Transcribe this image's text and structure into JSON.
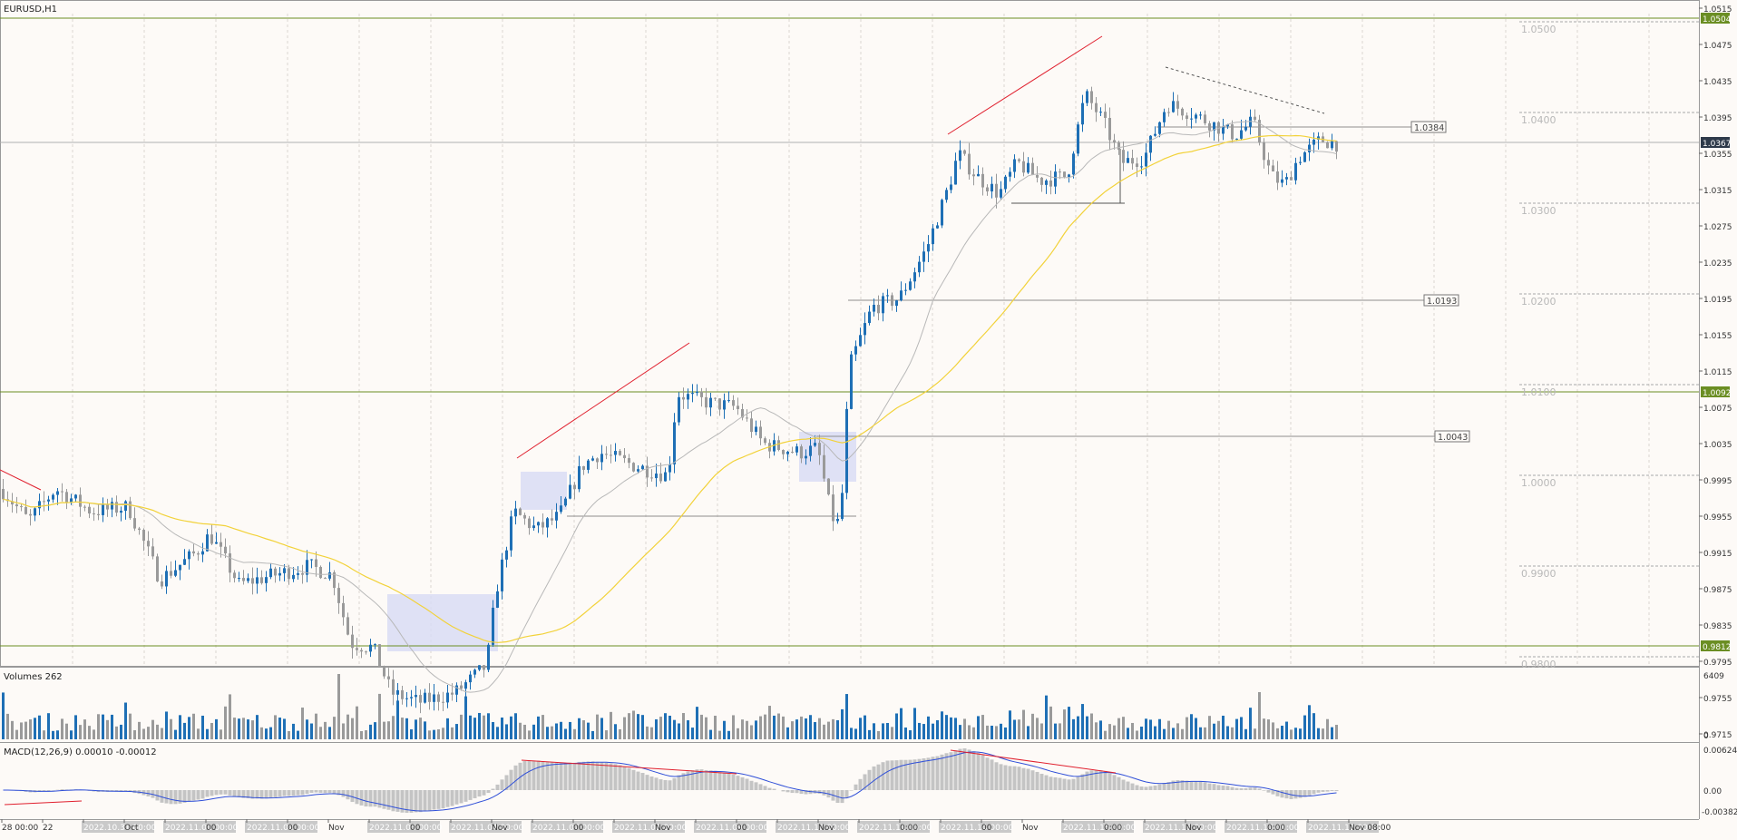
{
  "window": {
    "symbol_title": "EURUSD,H1"
  },
  "volume_panel": {
    "title": "Volumes 262",
    "max_label": "6409",
    "zero_label": "0"
  },
  "macd_panel": {
    "title": "MACD(12,26,9) 0.00010 -0.00012",
    "top_label": "0.00624",
    "zero_label": "0.00",
    "bottom_label": "-0.00382"
  },
  "price_axis": {
    "ticks": [
      "1.0515",
      "1.0475",
      "1.0435",
      "1.0395",
      "1.0355",
      "1.0315",
      "1.0275",
      "1.0235",
      "1.0195",
      "1.0155",
      "1.0115",
      "1.0075",
      "1.0035",
      "0.9995",
      "0.9955",
      "0.9915",
      "0.9875",
      "0.9835",
      "0.9795",
      "0.9755",
      "0.9715"
    ],
    "current_price": "1.0367"
  },
  "round_levels": [
    "1.0500",
    "1.0400",
    "1.0300",
    "1.0200",
    "1.0100",
    "1.0000",
    "0.9900",
    "0.9800"
  ],
  "horizontal_levels": [
    {
      "label": "1.0504",
      "color": "#6b8e23"
    },
    {
      "label": "1.0092",
      "color": "#6b8e23"
    },
    {
      "label": "0.9812",
      "color": "#6b8e23"
    }
  ],
  "line_labels": [
    "1.0384",
    "1.0193",
    "1.0043"
  ],
  "time_axis": {
    "labels": [
      "28 00:00",
      "22",
      "2022.10.31 00:00",
      "Oct",
      "2022.11.01 00:00",
      "00",
      "2022.11.02 00:00",
      "00",
      "Nov",
      "2022.11.03 00:00",
      "00",
      "2022.11.04 00:00",
      "Nov",
      "2022.11.07 00:00",
      "00",
      "2022.11.08 00:00",
      "Nov",
      "2022.11.09 00:00",
      "00",
      "2022.11.10 00:00",
      "Nov",
      "2022.11.11 00:00",
      "0:00",
      "2022.11.14 00:00",
      "00",
      "Nov",
      "2022.11.15 00:00",
      "0:00",
      "2022.11.16 00:00",
      "Nov",
      "2022.11.17 00:00",
      "0:00",
      "2022.11.18 00:00",
      "Nov 08:00"
    ]
  },
  "colors": {
    "bull": "#1e6fb5",
    "bear": "#9a9a9a",
    "ma_fast": "#b8b8b8",
    "ma_slow": "#f2d23a",
    "trend": "#e0202e",
    "level": "#6b8e23",
    "macd_line": "#2f4fd8"
  },
  "chart_data": {
    "type": "line",
    "title": "EURUSD,H1",
    "y_range": [
      0.9695,
      1.0525
    ],
    "x": [
      "2022.10.28",
      "2022.10.31",
      "2022.11.01",
      "2022.11.02",
      "2022.11.03",
      "2022.11.04",
      "2022.11.07",
      "2022.11.08",
      "2022.11.09",
      "2022.11.10",
      "2022.11.11",
      "2022.11.14",
      "2022.11.15",
      "2022.11.16",
      "2022.11.17",
      "2022.11.18"
    ],
    "series": [
      {
        "values": [
          0.9965,
          0.9958,
          0.988,
          0.9895,
          0.981,
          0.9765,
          0.996,
          1.005,
          1.0085,
          1.003,
          1.0195,
          1.0345,
          1.032,
          1.0395,
          1.0385,
          1.0367
        ]
      }
    ]
  }
}
